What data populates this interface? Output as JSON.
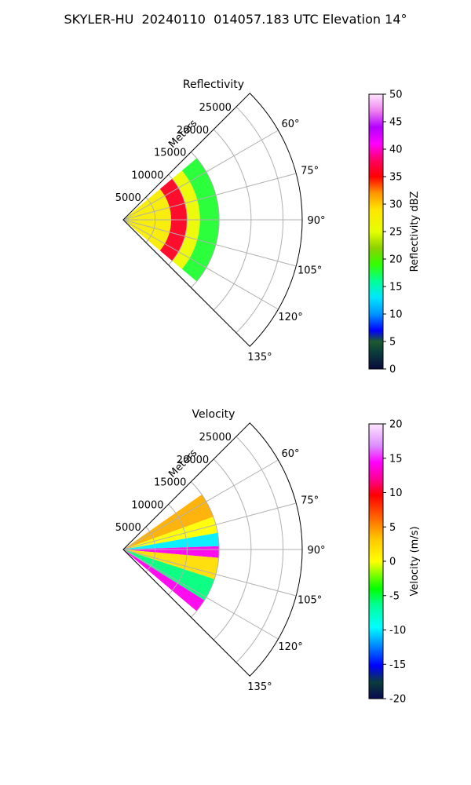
{
  "header": {
    "title": "SKYLER-HU  20240110  014057.183 UTC Elevation 14°"
  },
  "chart_data": [
    {
      "type": "heatmap",
      "title": "Reflectivity",
      "polar": true,
      "angle_ticks": [
        "60°",
        "75°",
        "90°",
        "105°",
        "120°",
        "135°"
      ],
      "angle_range_deg": [
        45,
        135
      ],
      "range_label": "Meters",
      "range_ticks": [
        "5000",
        "10000",
        "15000",
        "20000",
        "25000"
      ],
      "range_max_m": 28000,
      "data_extent_m": 15000,
      "colorbar": {
        "label": "Reflectivity dBZ",
        "min": 0,
        "max": 50,
        "ticks": [
          "0",
          "5",
          "10",
          "15",
          "20",
          "25",
          "30",
          "35",
          "40",
          "45",
          "50"
        ]
      },
      "zones": [
        {
          "r_from_m": 0,
          "r_to_m": 7500,
          "value_dbz": 28
        },
        {
          "r_from_m": 7500,
          "r_to_m": 10000,
          "value_dbz": 36
        },
        {
          "r_from_m": 10000,
          "r_to_m": 12000,
          "value_dbz": 26
        },
        {
          "r_from_m": 12000,
          "r_to_m": 15000,
          "value_dbz": 18
        }
      ]
    },
    {
      "type": "heatmap",
      "title": "Velocity",
      "polar": true,
      "angle_ticks": [
        "60°",
        "75°",
        "90°",
        "105°",
        "120°",
        "135°"
      ],
      "angle_range_deg": [
        45,
        135
      ],
      "range_label": "Meters",
      "range_ticks": [
        "5000",
        "10000",
        "15000",
        "20000",
        "25000"
      ],
      "range_max_m": 28000,
      "data_extent_m": 15000,
      "colorbar": {
        "label": "Velocity (m/s)",
        "min": -20,
        "max": 20,
        "ticks": [
          "-20",
          "-15",
          "-10",
          "-5",
          "0",
          "5",
          "10",
          "15",
          "20"
        ]
      },
      "zones": [
        {
          "az_from": 55,
          "az_to": 70,
          "value_ms": 4
        },
        {
          "az_from": 70,
          "az_to": 80,
          "value_ms": 0
        },
        {
          "az_from": 80,
          "az_to": 88,
          "value_ms": -10
        },
        {
          "az_from": 88,
          "az_to": 95,
          "value_ms": 14
        },
        {
          "az_from": 95,
          "az_to": 108,
          "value_ms": 2
        },
        {
          "az_from": 108,
          "az_to": 122,
          "value_ms": -6
        },
        {
          "az_from": 122,
          "az_to": 130,
          "value_ms": 14
        }
      ]
    }
  ]
}
